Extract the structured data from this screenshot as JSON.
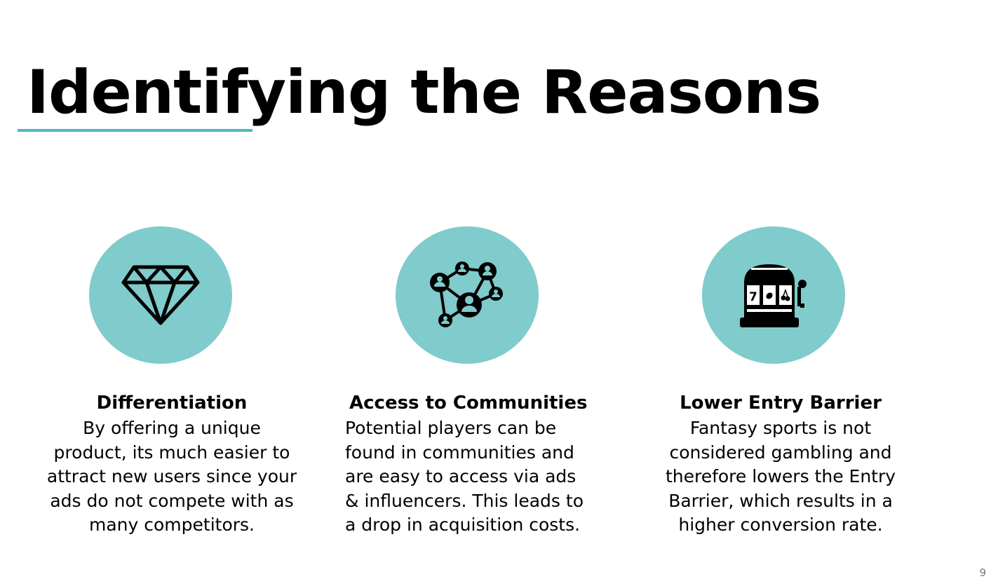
{
  "slide": {
    "title": "Identifying the Reasons",
    "accent_color": "#4fb8bf",
    "circle_color": "#80cbcb",
    "page_number": "9"
  },
  "reasons": [
    {
      "icon": "diamond-icon",
      "heading": "Differentiation",
      "body": "By offering a unique product, its much easier to attract new users since your ads do not compete with as many competitors."
    },
    {
      "icon": "network-people-icon",
      "heading": "Access to Communities",
      "body": "Potential players can be found in communities and are easy to access via ads & influencers. This leads to a drop in acquisition costs."
    },
    {
      "icon": "slot-machine-icon",
      "heading": "Lower Entry Barrier",
      "body": "Fantasy sports is not considered gambling and therefore lowers the Entry Barrier, which results in a higher conversion rate."
    }
  ]
}
